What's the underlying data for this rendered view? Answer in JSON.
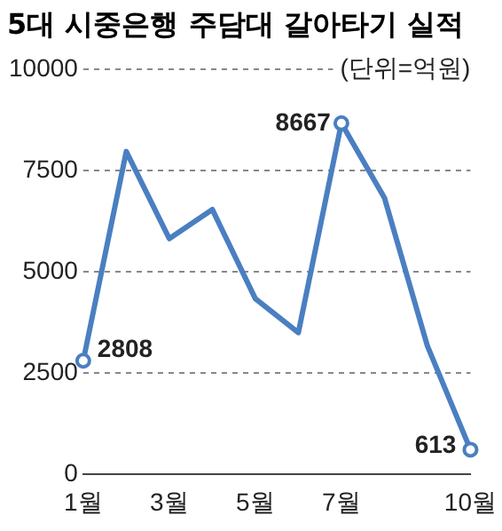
{
  "chart_data": {
    "type": "line",
    "title": "5대 시중은행 주담대 갈아타기 실적",
    "annotations": [
      "(단위=억원)"
    ],
    "categories": [
      "1월",
      null,
      "3월",
      null,
      "5월",
      null,
      "7월",
      null,
      null,
      "10월"
    ],
    "series": [
      {
        "color": "#4a7fc1",
        "values": [
          2808,
          7970,
          5820,
          6540,
          4340,
          3500,
          8667,
          6830,
          3170,
          613
        ],
        "value_labels": [
          "2808",
          null,
          null,
          null,
          null,
          null,
          "8667",
          null,
          null,
          "613"
        ]
      }
    ],
    "ylim": [
      0,
      10000
    ],
    "yticks": [
      0,
      2500,
      5000,
      7500,
      10000
    ],
    "grid": "y",
    "line_style": "solid"
  }
}
